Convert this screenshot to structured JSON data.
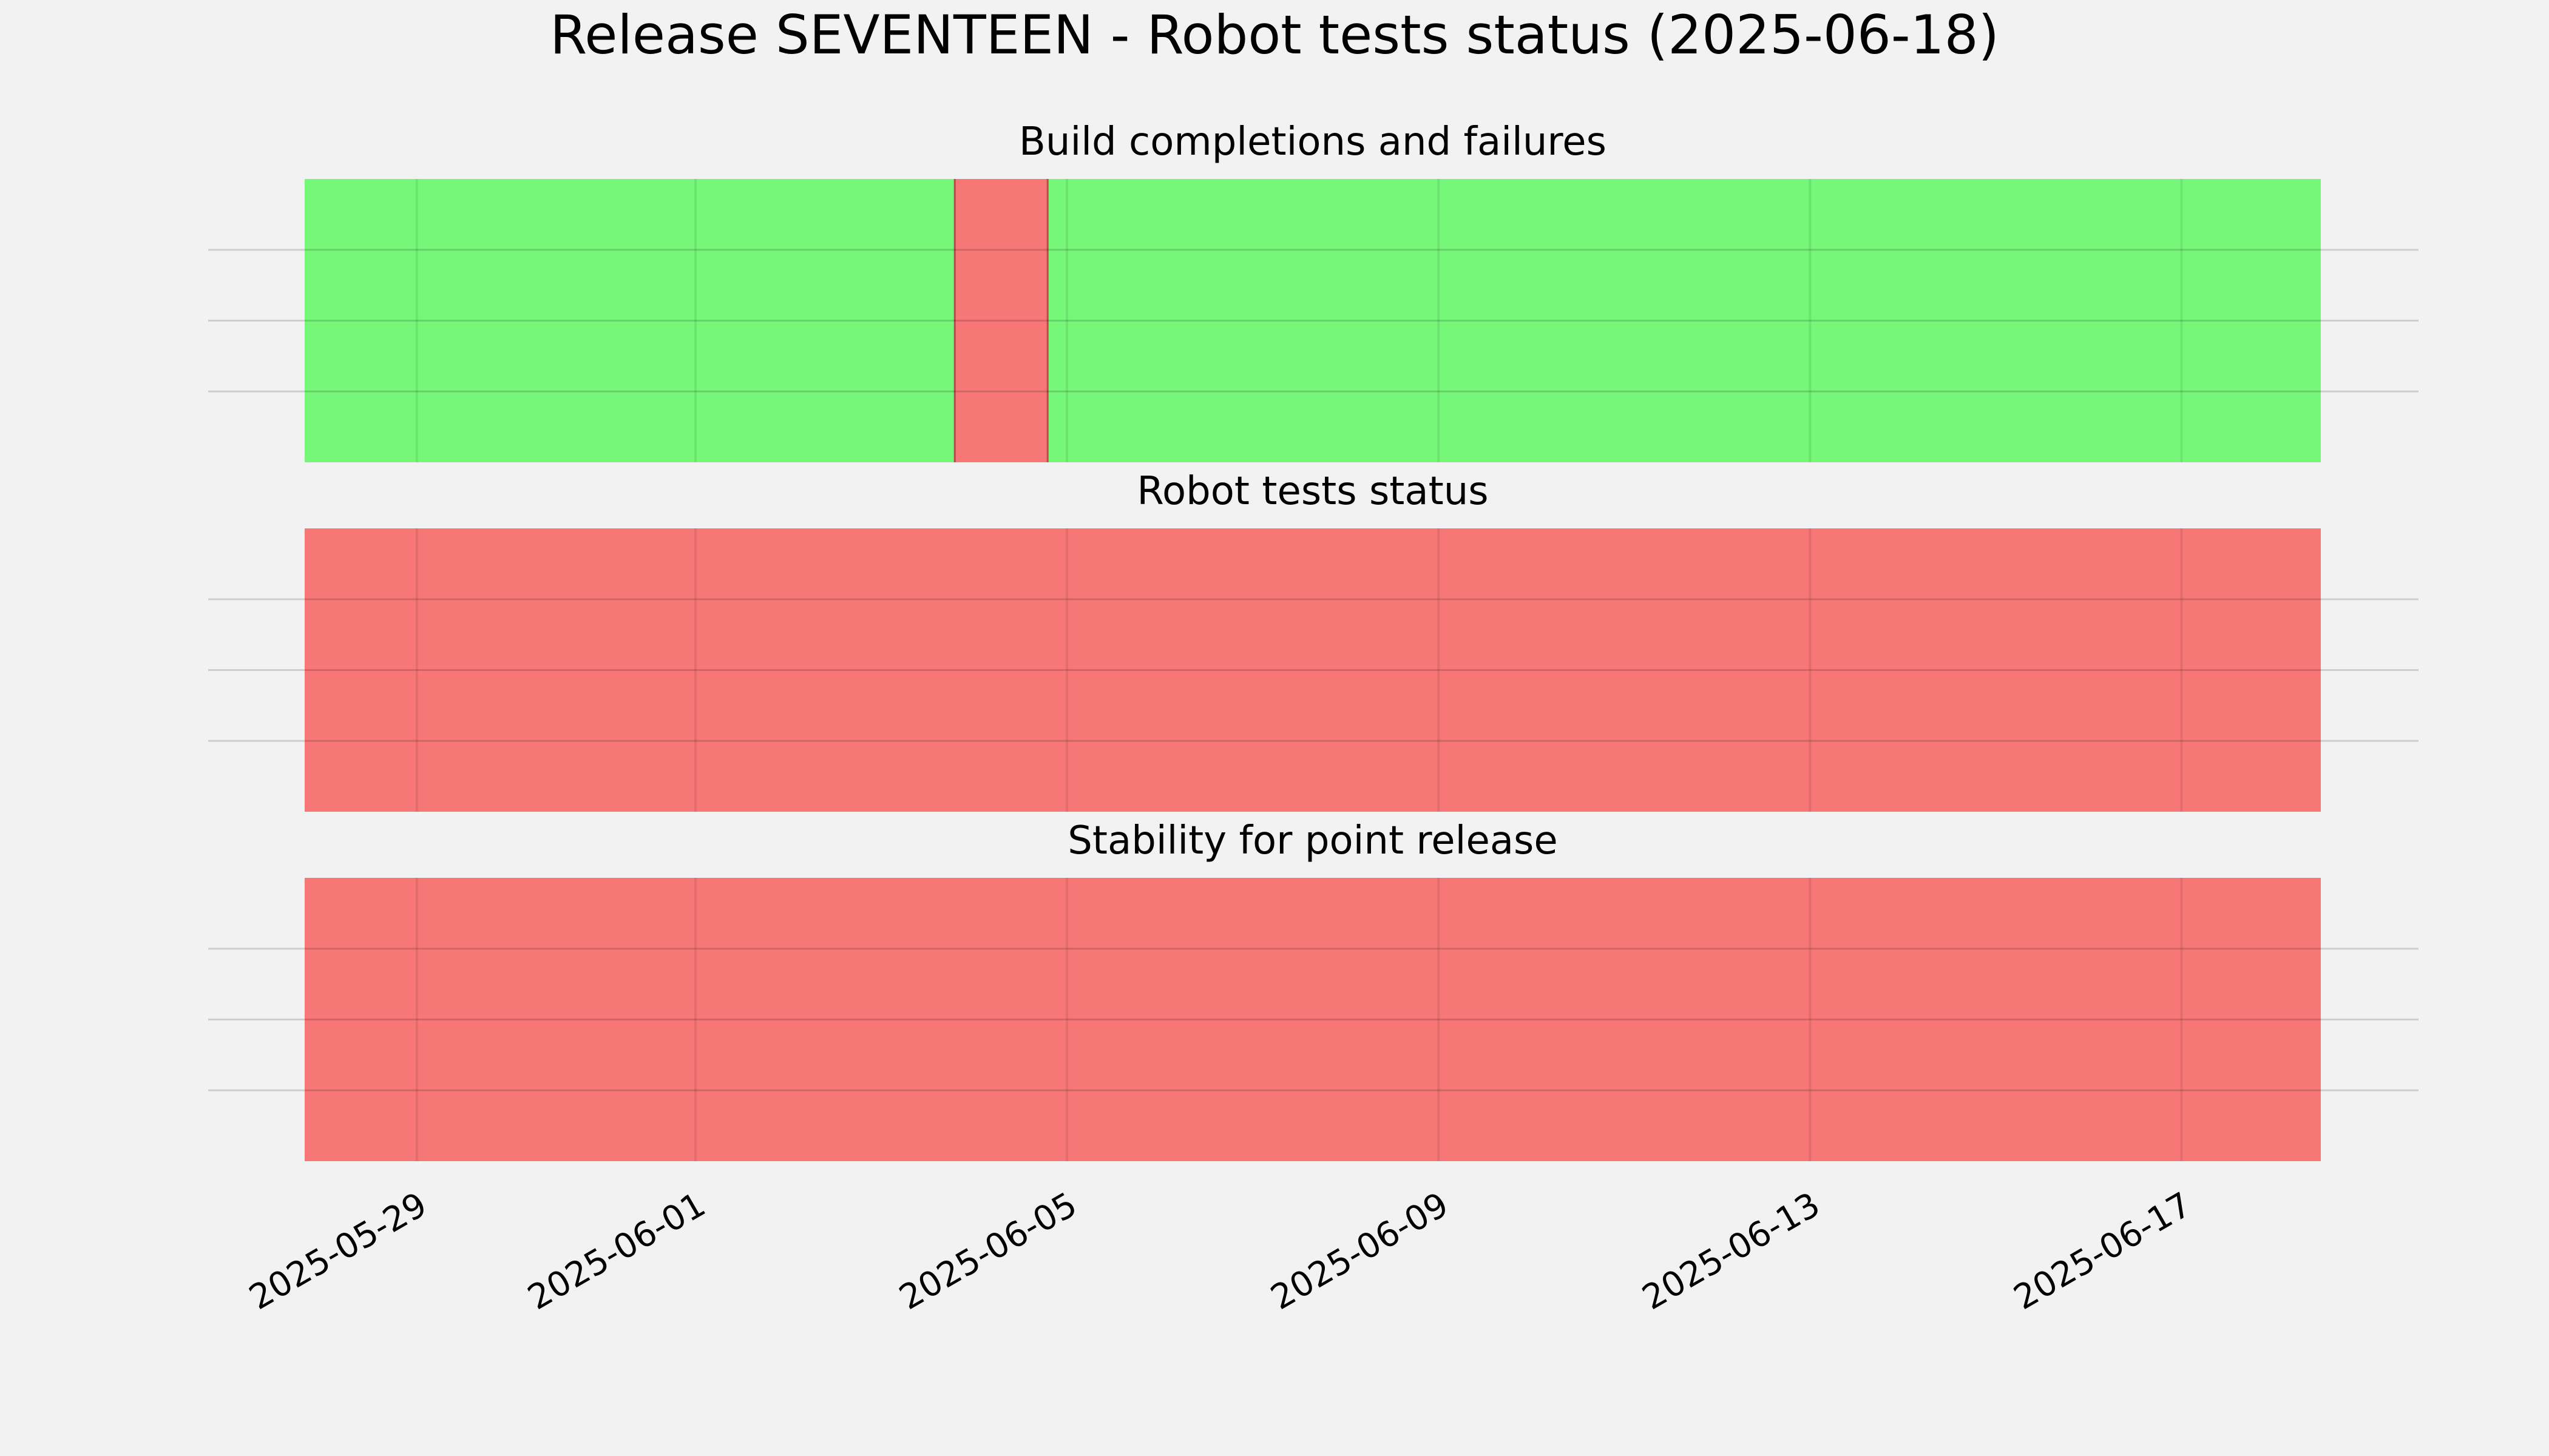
{
  "chart_data": {
    "type": "timeline",
    "title": "Release SEVENTEEN - Robot tests status (2025-06-18)",
    "xlim": [
      "2025-05-27T19:00",
      "2025-06-18T12:00"
    ],
    "x_ticks": [
      "2025-05-29",
      "2025-06-01",
      "2025-06-05",
      "2025-06-09",
      "2025-06-13",
      "2025-06-17"
    ],
    "y_grid": true,
    "colors": {
      "background": "#f2f2f2",
      "pass": "#77f77a",
      "fail": "#f77777",
      "grid": "#cccccc"
    },
    "panels": [
      {
        "title": "Build completions and failures",
        "segments": [
          {
            "start": "2025-05-27T19:00",
            "end": "2025-06-03T19:00",
            "status": "pass"
          },
          {
            "start": "2025-06-03T19:00",
            "end": "2025-06-04T19:00",
            "status": "fail"
          },
          {
            "start": "2025-06-04T19:00",
            "end": "2025-06-18T12:00",
            "status": "pass"
          }
        ]
      },
      {
        "title": "Robot tests status",
        "segments": [
          {
            "start": "2025-05-27T19:00",
            "end": "2025-06-18T12:00",
            "status": "fail"
          }
        ]
      },
      {
        "title": "Stability for point release",
        "segments": [
          {
            "start": "2025-05-27T19:00",
            "end": "2025-06-18T12:00",
            "status": "fail"
          }
        ]
      }
    ]
  }
}
